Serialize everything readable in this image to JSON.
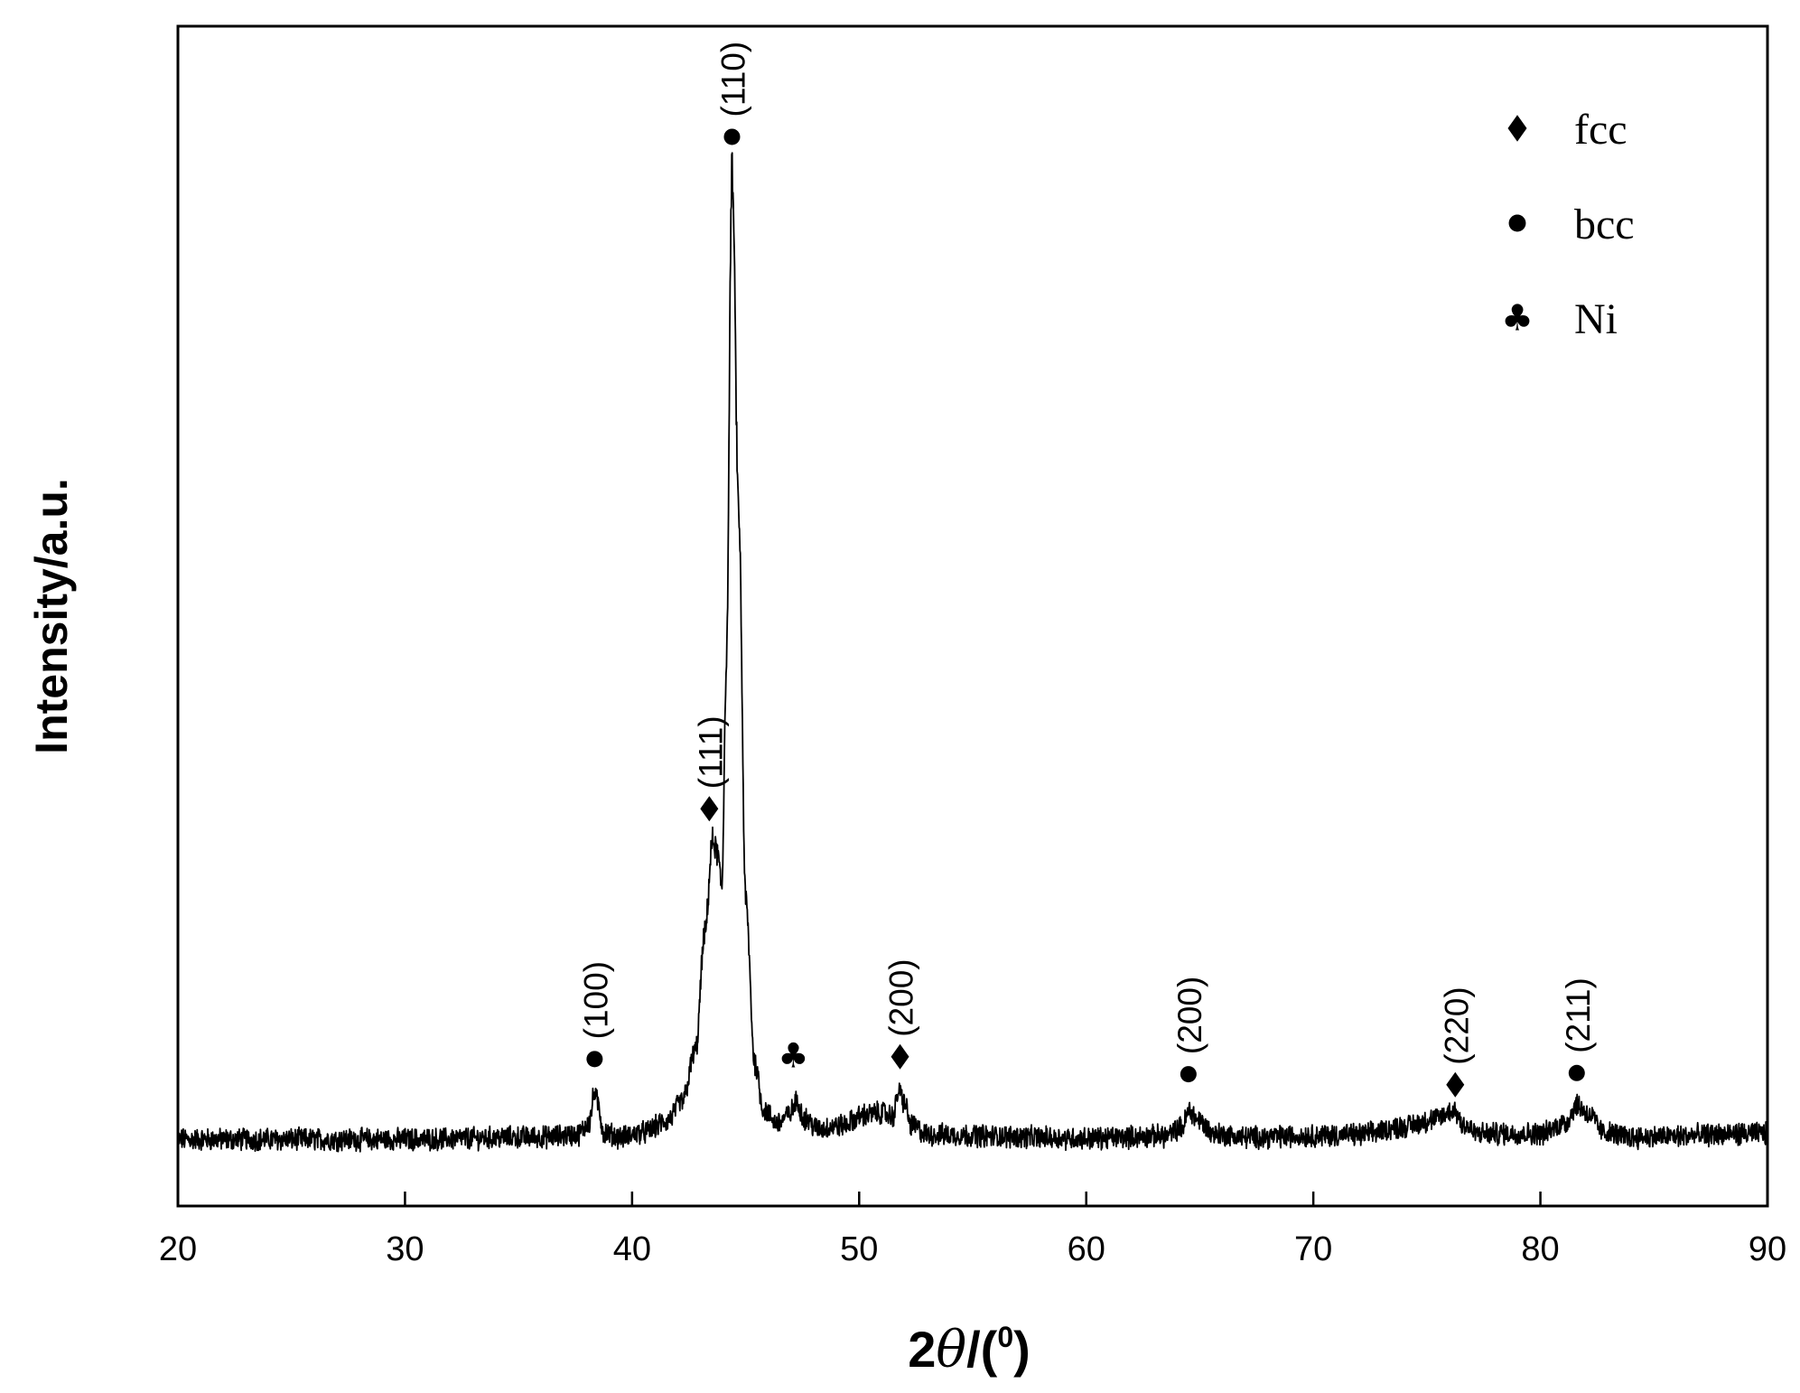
{
  "chart_data": {
    "type": "line",
    "title": "",
    "xlabel": {
      "prefix": "2",
      "symbol": "θ",
      "suffix": "/(",
      "superscript": "0",
      "close": ")"
    },
    "ylabel": "Intensity/a.u.",
    "xlim": [
      20,
      90
    ],
    "ylim": [
      0,
      100
    ],
    "x_ticks": [
      "20",
      "30",
      "40",
      "50",
      "60",
      "70",
      "80",
      "90"
    ],
    "grid": false,
    "legend_position": "top-right",
    "legend": [
      {
        "label": "fcc",
        "marker": "diamond-icon"
      },
      {
        "label": "bcc",
        "marker": "circle-icon"
      },
      {
        "label": "Ni",
        "marker": "club-icon"
      }
    ],
    "series": [
      {
        "line_color": "#000000",
        "points": [
          [
            20,
            4.4
          ],
          [
            30,
            4.4
          ],
          [
            36,
            4.6
          ],
          [
            37.6,
            4.8
          ],
          [
            38.1,
            5.8
          ],
          [
            38.35,
            8.4
          ],
          [
            38.5,
            7.4
          ],
          [
            38.75,
            5.0
          ],
          [
            39.5,
            4.6
          ],
          [
            40.5,
            5.0
          ],
          [
            41.5,
            5.9
          ],
          [
            42.2,
            7.6
          ],
          [
            42.8,
            12.0
          ],
          [
            43.2,
            22.0
          ],
          [
            43.55,
            30.0
          ],
          [
            43.75,
            29.0
          ],
          [
            43.95,
            26.0
          ],
          [
            44.15,
            45.0
          ],
          [
            44.4,
            87.5
          ],
          [
            44.7,
            58.0
          ],
          [
            45.0,
            25.0
          ],
          [
            45.4,
            11.0
          ],
          [
            45.8,
            6.9
          ],
          [
            46.4,
            5.8
          ],
          [
            46.9,
            6.5
          ],
          [
            47.25,
            7.6
          ],
          [
            47.6,
            6.2
          ],
          [
            48.2,
            5.3
          ],
          [
            49.2,
            5.6
          ],
          [
            50.3,
            6.5
          ],
          [
            51.0,
            6.7
          ],
          [
            51.5,
            6.4
          ],
          [
            51.75,
            8.6
          ],
          [
            51.95,
            7.7
          ],
          [
            52.3,
            5.6
          ],
          [
            53.0,
            4.8
          ],
          [
            60,
            4.5
          ],
          [
            63.5,
            4.7
          ],
          [
            64.2,
            5.4
          ],
          [
            64.55,
            6.9
          ],
          [
            64.9,
            6.1
          ],
          [
            65.6,
            4.9
          ],
          [
            67,
            4.6
          ],
          [
            72,
            4.8
          ],
          [
            74,
            5.5
          ],
          [
            75.3,
            6.1
          ],
          [
            76.2,
            6.9
          ],
          [
            76.6,
            5.7
          ],
          [
            77.2,
            4.9
          ],
          [
            80,
            4.9
          ],
          [
            81.1,
            5.8
          ],
          [
            81.6,
            7.4
          ],
          [
            82.1,
            6.6
          ],
          [
            82.8,
            5.0
          ],
          [
            84,
            4.6
          ],
          [
            90,
            4.9
          ]
        ]
      }
    ],
    "annotations": [
      {
        "marker": "circle-icon",
        "x": 38.35,
        "y": 11.3,
        "label": "(100)"
      },
      {
        "marker": "diamond-icon",
        "x": 43.4,
        "y": 32.8,
        "label": "(111)"
      },
      {
        "marker": "circle-icon",
        "x": 44.4,
        "y": 90.5,
        "label": "(110)"
      },
      {
        "marker": "club-icon",
        "x": 47.1,
        "y": 11.6,
        "label": ""
      },
      {
        "marker": "diamond-icon",
        "x": 51.8,
        "y": 11.5,
        "label": "(200)"
      },
      {
        "marker": "circle-icon",
        "x": 64.5,
        "y": 10.0,
        "label": "(200)"
      },
      {
        "marker": "diamond-icon",
        "x": 76.25,
        "y": 9.1,
        "label": "(220)"
      },
      {
        "marker": "circle-icon",
        "x": 81.6,
        "y": 10.1,
        "label": "(211)"
      }
    ]
  }
}
